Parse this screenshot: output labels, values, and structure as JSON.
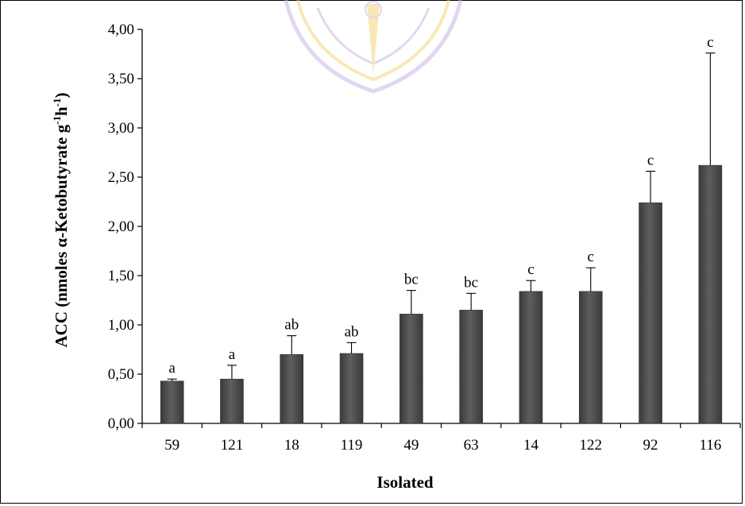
{
  "chart_data": {
    "type": "bar",
    "xlabel": "Isolated",
    "ylabel": {
      "prefix": "ACC (nmoles α-Ketobutyrate g",
      "sup1": "-1",
      "mid": "h",
      "sup2": "-1",
      "suffix": ")"
    },
    "ylim": [
      0,
      4
    ],
    "ytick_step": 0.5,
    "ytick_labels": [
      "0,00",
      "0,50",
      "1,00",
      "1,50",
      "2,00",
      "2,50",
      "3,00",
      "3,50",
      "4,00"
    ],
    "categories": [
      "59",
      "121",
      "18",
      "119",
      "49",
      "63",
      "14",
      "122",
      "92",
      "116"
    ],
    "values": [
      0.43,
      0.45,
      0.7,
      0.71,
      1.11,
      1.15,
      1.34,
      1.34,
      2.24,
      2.62
    ],
    "error_upper": [
      0.45,
      0.59,
      0.89,
      0.82,
      1.35,
      1.32,
      1.45,
      1.58,
      2.56,
      3.76
    ],
    "significance_labels": [
      "a",
      "a",
      "ab",
      "ab",
      "bc",
      "bc",
      "c",
      "c",
      "c",
      "c"
    ],
    "bar_color": "#4d4d4d",
    "grid": false,
    "legend": "none"
  },
  "watermark": {
    "description": "university seal",
    "colors": [
      "#c9b8e6",
      "#f4d77a"
    ]
  }
}
